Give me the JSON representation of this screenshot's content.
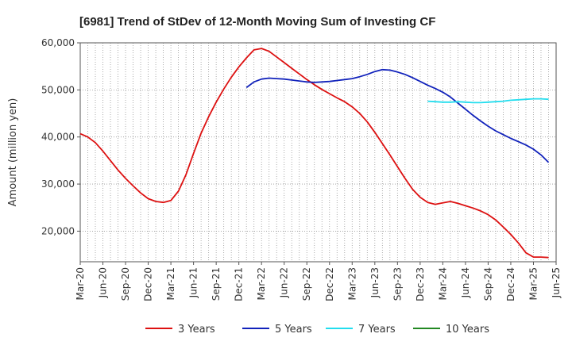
{
  "chart_data": {
    "type": "line",
    "title": "[6981]  Trend of StDev of 12-Month Moving Sum of Investing CF",
    "xlabel": "",
    "ylabel": "Amount (million yen)",
    "ylim": [
      13500,
      60000
    ],
    "yticks": [
      20000,
      30000,
      40000,
      50000,
      60000
    ],
    "ytick_labels": [
      "20,000",
      "30,000",
      "40,000",
      "50,000",
      "60,000"
    ],
    "xlim": [
      "2020-03",
      "2025-06"
    ],
    "xticks": [
      "2020-03",
      "2020-06",
      "2020-09",
      "2020-12",
      "2021-03",
      "2021-06",
      "2021-09",
      "2021-12",
      "2022-03",
      "2022-06",
      "2022-09",
      "2022-12",
      "2023-03",
      "2023-06",
      "2023-09",
      "2023-12",
      "2024-03",
      "2024-06",
      "2024-09",
      "2024-12",
      "2025-03",
      "2025-06"
    ],
    "xtick_labels": [
      "Mar-20",
      "Jun-20",
      "Sep-20",
      "Dec-20",
      "Mar-21",
      "Jun-21",
      "Sep-21",
      "Dec-21",
      "Mar-22",
      "Jun-22",
      "Sep-22",
      "Dec-22",
      "Mar-23",
      "Jun-23",
      "Sep-23",
      "Dec-23",
      "Mar-24",
      "Jun-24",
      "Sep-24",
      "Dec-24",
      "Mar-25",
      "Jun-25"
    ],
    "grid": true,
    "legend_position": "bottom",
    "series": [
      {
        "name": "3 Years",
        "color": "#dd1111",
        "points": [
          [
            "2020-03",
            40700
          ],
          [
            "2020-04",
            40000
          ],
          [
            "2020-05",
            38800
          ],
          [
            "2020-06",
            37000
          ],
          [
            "2020-07",
            35000
          ],
          [
            "2020-08",
            33000
          ],
          [
            "2020-09",
            31200
          ],
          [
            "2020-10",
            29600
          ],
          [
            "2020-11",
            28100
          ],
          [
            "2020-12",
            26900
          ],
          [
            "2021-01",
            26300
          ],
          [
            "2021-02",
            26100
          ],
          [
            "2021-03",
            26500
          ],
          [
            "2021-04",
            28500
          ],
          [
            "2021-05",
            32000
          ],
          [
            "2021-06",
            36500
          ],
          [
            "2021-07",
            40800
          ],
          [
            "2021-08",
            44300
          ],
          [
            "2021-09",
            47400
          ],
          [
            "2021-10",
            50200
          ],
          [
            "2021-11",
            52700
          ],
          [
            "2021-12",
            54900
          ],
          [
            "2022-01",
            56800
          ],
          [
            "2022-02",
            58500
          ],
          [
            "2022-03",
            58800
          ],
          [
            "2022-04",
            58200
          ],
          [
            "2022-05",
            57000
          ],
          [
            "2022-06",
            55800
          ],
          [
            "2022-07",
            54600
          ],
          [
            "2022-08",
            53400
          ],
          [
            "2022-09",
            52200
          ],
          [
            "2022-10",
            51100
          ],
          [
            "2022-11",
            50100
          ],
          [
            "2022-12",
            49200
          ],
          [
            "2023-01",
            48300
          ],
          [
            "2023-02",
            47500
          ],
          [
            "2023-03",
            46400
          ],
          [
            "2023-04",
            45000
          ],
          [
            "2023-05",
            43200
          ],
          [
            "2023-06",
            41000
          ],
          [
            "2023-07",
            38600
          ],
          [
            "2023-08",
            36200
          ],
          [
            "2023-09",
            33700
          ],
          [
            "2023-10",
            31200
          ],
          [
            "2023-11",
            28900
          ],
          [
            "2023-12",
            27200
          ],
          [
            "2024-01",
            26100
          ],
          [
            "2024-02",
            25700
          ],
          [
            "2024-03",
            26000
          ],
          [
            "2024-04",
            26300
          ],
          [
            "2024-05",
            25900
          ],
          [
            "2024-06",
            25400
          ],
          [
            "2024-07",
            24900
          ],
          [
            "2024-08",
            24300
          ],
          [
            "2024-09",
            23500
          ],
          [
            "2024-10",
            22400
          ],
          [
            "2024-11",
            20900
          ],
          [
            "2024-12",
            19300
          ],
          [
            "2025-01",
            17500
          ],
          [
            "2025-02",
            15400
          ],
          [
            "2025-03",
            14500
          ],
          [
            "2025-04",
            14500
          ],
          [
            "2025-05",
            14400
          ]
        ]
      },
      {
        "name": "5 Years",
        "color": "#1122bb",
        "points": [
          [
            "2022-01",
            50500
          ],
          [
            "2022-02",
            51700
          ],
          [
            "2022-03",
            52300
          ],
          [
            "2022-04",
            52500
          ],
          [
            "2022-05",
            52400
          ],
          [
            "2022-06",
            52300
          ],
          [
            "2022-07",
            52100
          ],
          [
            "2022-08",
            51900
          ],
          [
            "2022-09",
            51700
          ],
          [
            "2022-10",
            51600
          ],
          [
            "2022-11",
            51700
          ],
          [
            "2022-12",
            51800
          ],
          [
            "2023-01",
            52000
          ],
          [
            "2023-02",
            52200
          ],
          [
            "2023-03",
            52400
          ],
          [
            "2023-04",
            52800
          ],
          [
            "2023-05",
            53300
          ],
          [
            "2023-06",
            53900
          ],
          [
            "2023-07",
            54300
          ],
          [
            "2023-08",
            54200
          ],
          [
            "2023-09",
            53800
          ],
          [
            "2023-10",
            53300
          ],
          [
            "2023-11",
            52600
          ],
          [
            "2023-12",
            51800
          ],
          [
            "2024-01",
            51000
          ],
          [
            "2024-02",
            50300
          ],
          [
            "2024-03",
            49500
          ],
          [
            "2024-04",
            48500
          ],
          [
            "2024-05",
            47200
          ],
          [
            "2024-06",
            45900
          ],
          [
            "2024-07",
            44600
          ],
          [
            "2024-08",
            43400
          ],
          [
            "2024-09",
            42300
          ],
          [
            "2024-10",
            41300
          ],
          [
            "2024-11",
            40500
          ],
          [
            "2024-12",
            39700
          ],
          [
            "2025-01",
            39000
          ],
          [
            "2025-02",
            38300
          ],
          [
            "2025-03",
            37400
          ],
          [
            "2025-04",
            36200
          ],
          [
            "2025-05",
            34600
          ]
        ]
      },
      {
        "name": "7 Years",
        "color": "#22ddee",
        "points": [
          [
            "2024-01",
            47600
          ],
          [
            "2024-02",
            47500
          ],
          [
            "2024-03",
            47400
          ],
          [
            "2024-04",
            47400
          ],
          [
            "2024-05",
            47500
          ],
          [
            "2024-06",
            47400
          ],
          [
            "2024-07",
            47300
          ],
          [
            "2024-08",
            47300
          ],
          [
            "2024-09",
            47400
          ],
          [
            "2024-10",
            47500
          ],
          [
            "2024-11",
            47600
          ],
          [
            "2024-12",
            47800
          ],
          [
            "2025-01",
            47900
          ],
          [
            "2025-02",
            48000
          ],
          [
            "2025-03",
            48100
          ],
          [
            "2025-04",
            48100
          ],
          [
            "2025-05",
            48000
          ]
        ]
      },
      {
        "name": "10 Years",
        "color": "#228822",
        "points": []
      }
    ]
  }
}
